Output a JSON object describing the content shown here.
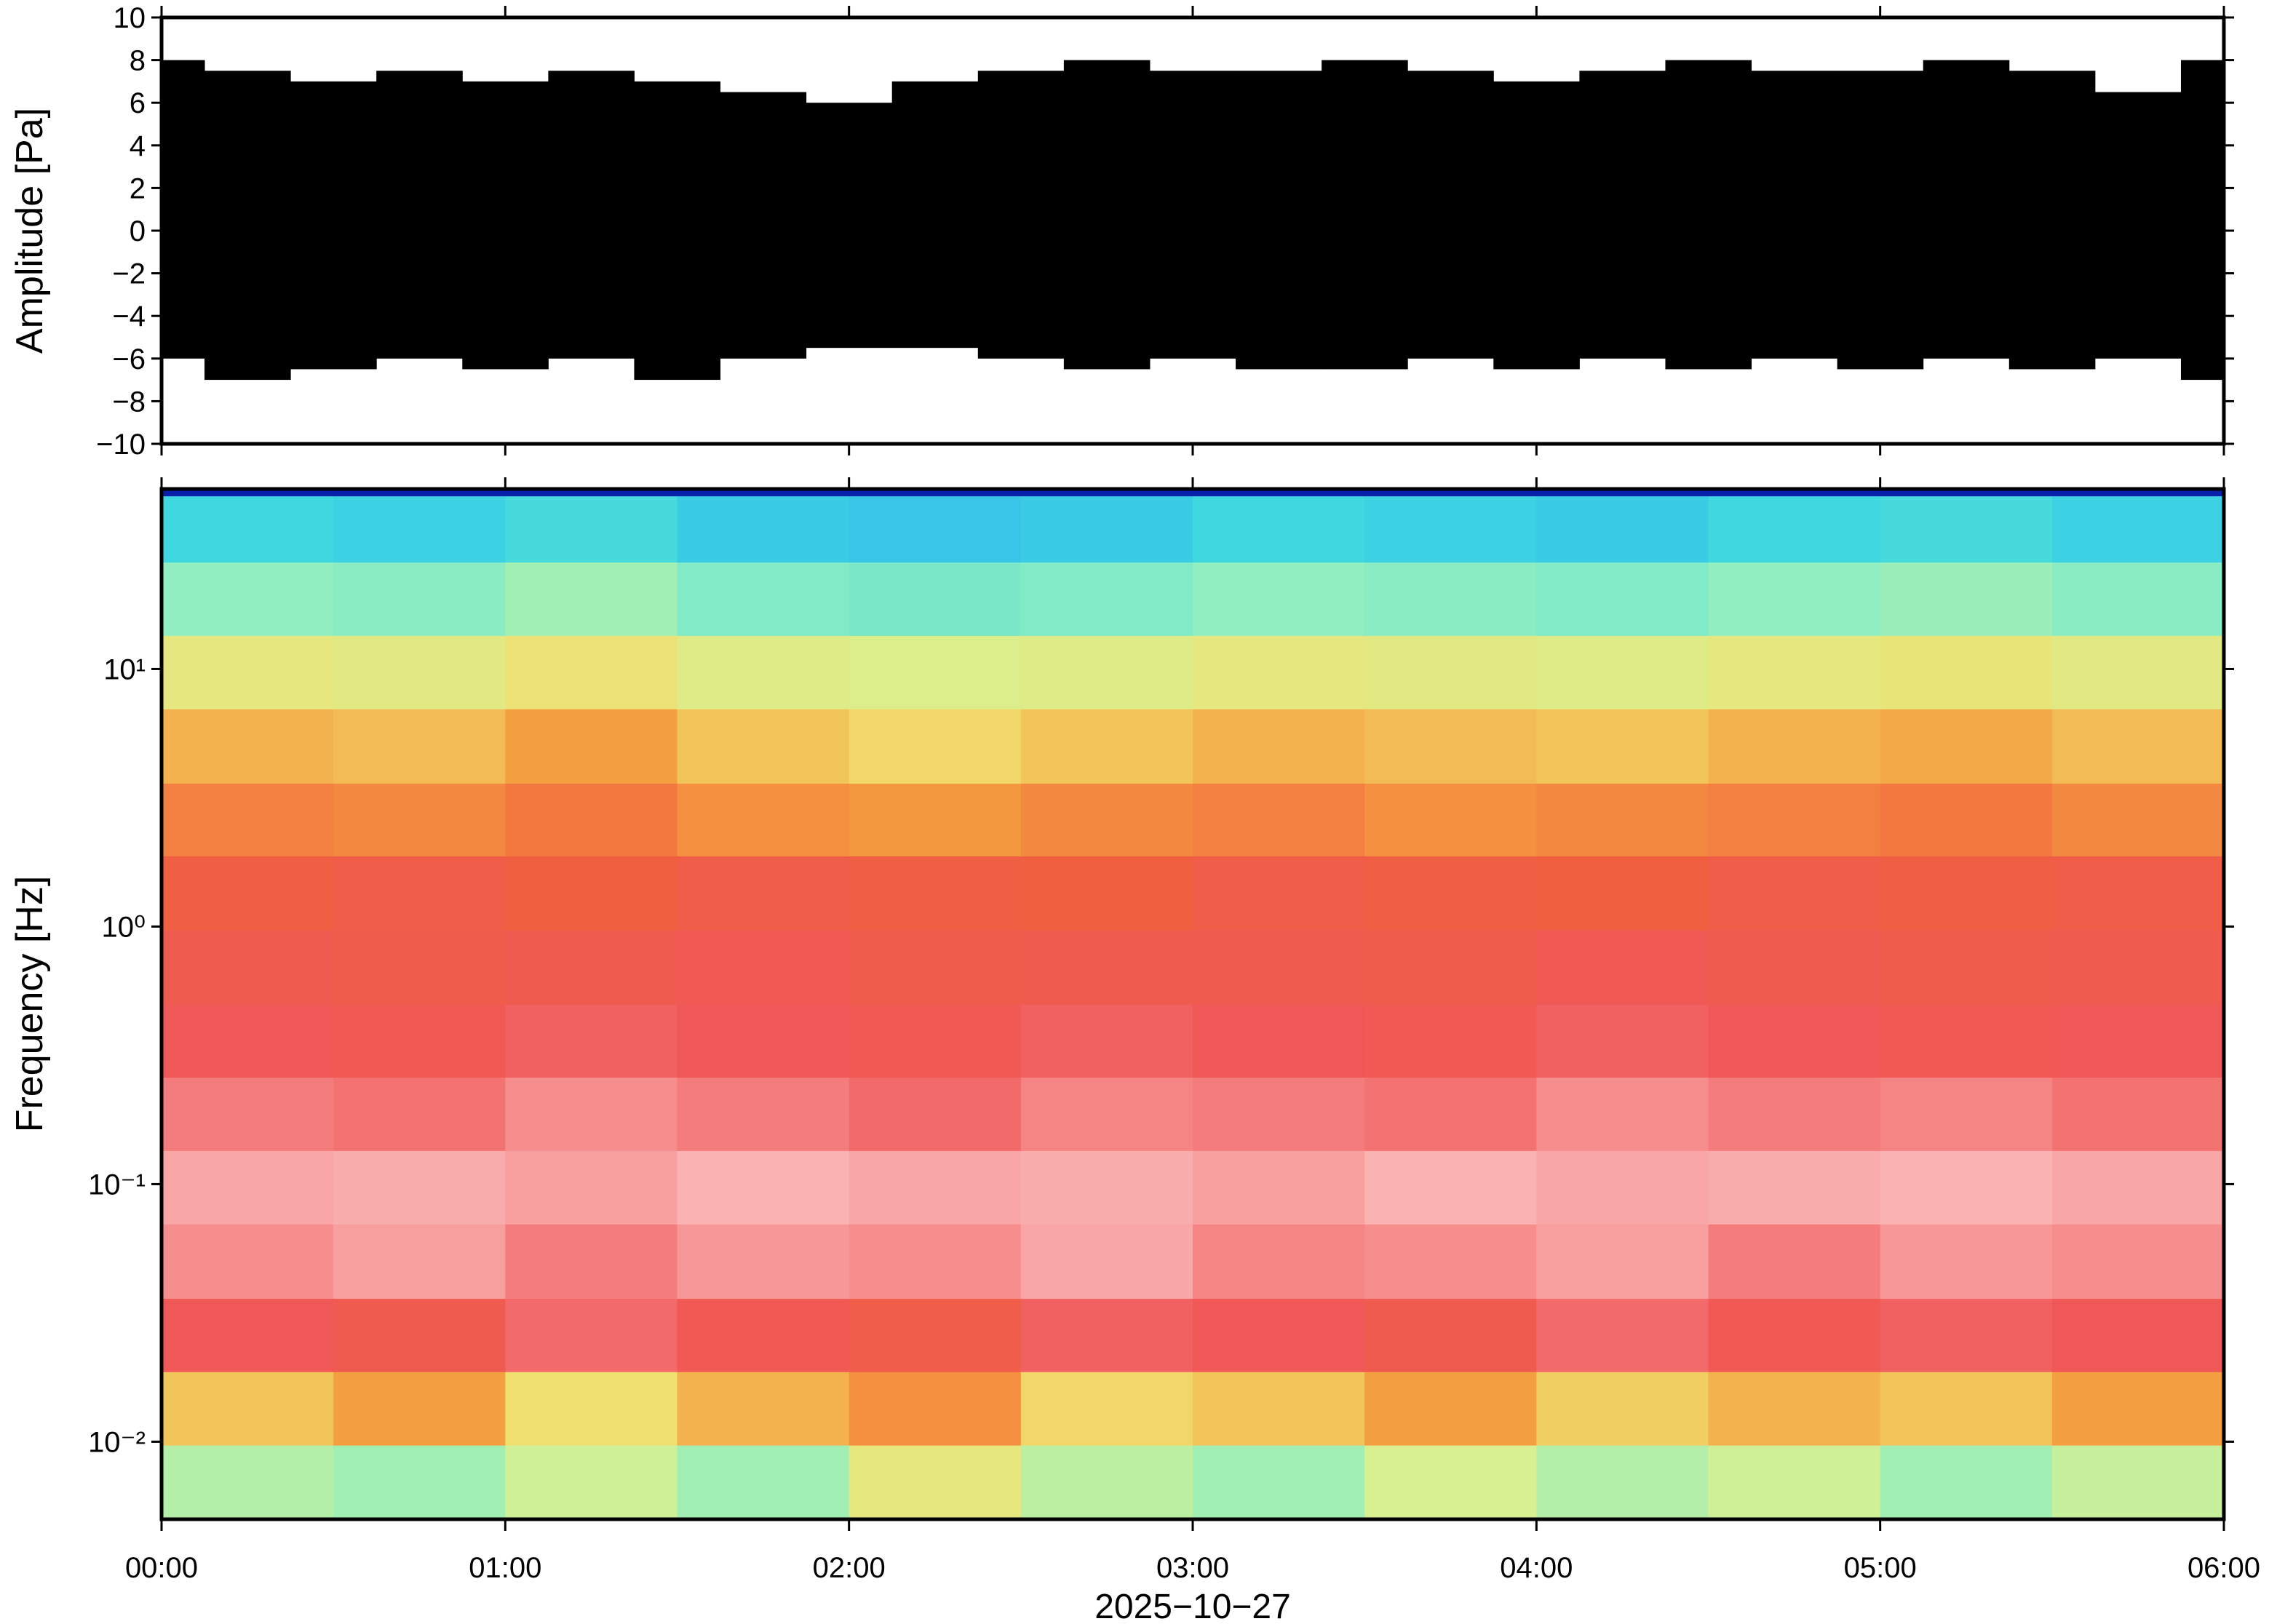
{
  "chart_data": [
    {
      "type": "waveform",
      "ylabel": "Amplitude [Pa]",
      "x": [
        0,
        0.25,
        0.5,
        0.75,
        1,
        1.25,
        1.5,
        1.75,
        2,
        2.25,
        2.5,
        2.75,
        3,
        3.25,
        3.5,
        3.75,
        4,
        4.25,
        4.5,
        4.75,
        5,
        5.25,
        5.5,
        5.75,
        6
      ],
      "high": [
        8,
        7.5,
        7,
        7.5,
        7,
        7.5,
        7,
        6.5,
        6,
        7,
        7.5,
        8,
        7.5,
        7.5,
        8,
        7.5,
        7,
        7.5,
        8,
        7.5,
        7.5,
        8,
        7.5,
        6.5,
        8
      ],
      "low": [
        -6,
        -7,
        -6.5,
        -6,
        -6.5,
        -6,
        -7,
        -6,
        -5.5,
        -5.5,
        -6,
        -6.5,
        -6,
        -6.5,
        -6.5,
        -6,
        -6.5,
        -6,
        -6.5,
        -6,
        -6.5,
        -6,
        -6.5,
        -6,
        -7
      ],
      "color": "#000000",
      "xlim": [
        0,
        6
      ],
      "xticks": [
        0,
        1,
        2,
        3,
        4,
        5,
        6
      ],
      "ylim": [
        -10,
        10
      ],
      "yticks": [
        {
          "value": -10,
          "label": "−10"
        },
        {
          "value": -8,
          "label": "−8"
        },
        {
          "value": -6,
          "label": "−6"
        },
        {
          "value": -4,
          "label": "−4"
        },
        {
          "value": -2,
          "label": "−2"
        },
        0,
        2,
        4,
        6,
        8,
        10
      ]
    },
    {
      "type": "heatmap",
      "ylabel": "Frequency [Hz]",
      "xlabel": "2025−10−27",
      "x_edges": [
        0,
        0.5,
        1,
        1.5,
        2,
        2.5,
        3,
        3.5,
        4,
        4.5,
        5,
        5.5,
        6
      ],
      "y_edges": [
        0.005,
        0.0097,
        0.0187,
        0.036,
        0.07,
        0.135,
        0.26,
        0.5,
        0.97,
        1.88,
        3.6,
        7,
        13.5,
        26,
        47,
        50
      ],
      "z": [
        [
          0.52,
          0.5,
          0.55,
          0.5,
          0.6,
          0.53,
          0.5,
          0.56,
          0.52,
          0.55,
          0.5,
          0.54
        ],
        [
          0.66,
          0.7,
          0.63,
          0.68,
          0.72,
          0.64,
          0.66,
          0.7,
          0.65,
          0.68,
          0.66,
          0.7
        ],
        [
          0.84,
          0.82,
          0.86,
          0.83,
          0.8,
          0.85,
          0.84,
          0.82,
          0.86,
          0.83,
          0.85,
          0.84
        ],
        [
          0.9,
          0.92,
          0.88,
          0.91,
          0.9,
          0.93,
          0.89,
          0.9,
          0.92,
          0.88,
          0.91,
          0.9
        ],
        [
          0.93,
          0.94,
          0.92,
          0.95,
          0.93,
          0.94,
          0.92,
          0.95,
          0.93,
          0.94,
          0.95,
          0.93
        ],
        [
          0.88,
          0.87,
          0.9,
          0.88,
          0.86,
          0.89,
          0.88,
          0.87,
          0.9,
          0.88,
          0.89,
          0.87
        ],
        [
          0.84,
          0.83,
          0.85,
          0.84,
          0.83,
          0.85,
          0.84,
          0.83,
          0.85,
          0.84,
          0.83,
          0.84
        ],
        [
          0.82,
          0.81,
          0.82,
          0.83,
          0.81,
          0.82,
          0.82,
          0.81,
          0.83,
          0.82,
          0.81,
          0.82
        ],
        [
          0.79,
          0.8,
          0.78,
          0.8,
          0.79,
          0.78,
          0.8,
          0.79,
          0.78,
          0.8,
          0.79,
          0.8
        ],
        [
          0.74,
          0.73,
          0.75,
          0.72,
          0.71,
          0.73,
          0.74,
          0.72,
          0.73,
          0.74,
          0.75,
          0.73
        ],
        [
          0.68,
          0.67,
          0.7,
          0.66,
          0.64,
          0.66,
          0.68,
          0.67,
          0.66,
          0.68,
          0.69,
          0.67
        ],
        [
          0.6,
          0.59,
          0.62,
          0.58,
          0.57,
          0.58,
          0.6,
          0.59,
          0.58,
          0.6,
          0.61,
          0.59
        ],
        [
          0.48,
          0.47,
          0.5,
          0.46,
          0.45,
          0.46,
          0.48,
          0.47,
          0.46,
          0.48,
          0.49,
          0.47
        ],
        [
          0.37,
          0.36,
          0.38,
          0.35,
          0.34,
          0.35,
          0.37,
          0.36,
          0.35,
          0.37,
          0.38,
          0.36
        ],
        [
          0.08,
          0.08,
          0.08,
          0.08,
          0.08,
          0.08,
          0.08,
          0.08,
          0.08,
          0.08,
          0.08,
          0.08
        ]
      ],
      "colormap": [
        [
          0,
          "#00005a"
        ],
        [
          0.12,
          "#0a2fd0"
        ],
        [
          0.25,
          "#1e90ff"
        ],
        [
          0.37,
          "#40d8e0"
        ],
        [
          0.48,
          "#90eec0"
        ],
        [
          0.56,
          "#d8f090"
        ],
        [
          0.63,
          "#f0e070"
        ],
        [
          0.7,
          "#f5a040"
        ],
        [
          0.78,
          "#f06040"
        ],
        [
          0.84,
          "#f05858"
        ],
        [
          0.92,
          "#f8a0a0"
        ],
        [
          1,
          "#fcd0d0"
        ]
      ],
      "xlim": [
        0,
        6
      ],
      "xticks": [
        {
          "value": 0,
          "label": "00:00"
        },
        {
          "value": 1,
          "label": "01:00"
        },
        {
          "value": 2,
          "label": "02:00"
        },
        {
          "value": 3,
          "label": "03:00"
        },
        {
          "value": 4,
          "label": "04:00"
        },
        {
          "value": 5,
          "label": "05:00"
        },
        {
          "value": 6,
          "label": "06:00"
        }
      ],
      "ylim": [
        0.005,
        50
      ],
      "log_y": true,
      "yticks": [
        {
          "value": 0.01,
          "label": "10⁻²"
        },
        {
          "value": 0.1,
          "label": "10⁻¹"
        },
        {
          "value": 1,
          "label": "10⁰"
        },
        {
          "value": 10,
          "label": "10¹"
        }
      ]
    }
  ]
}
